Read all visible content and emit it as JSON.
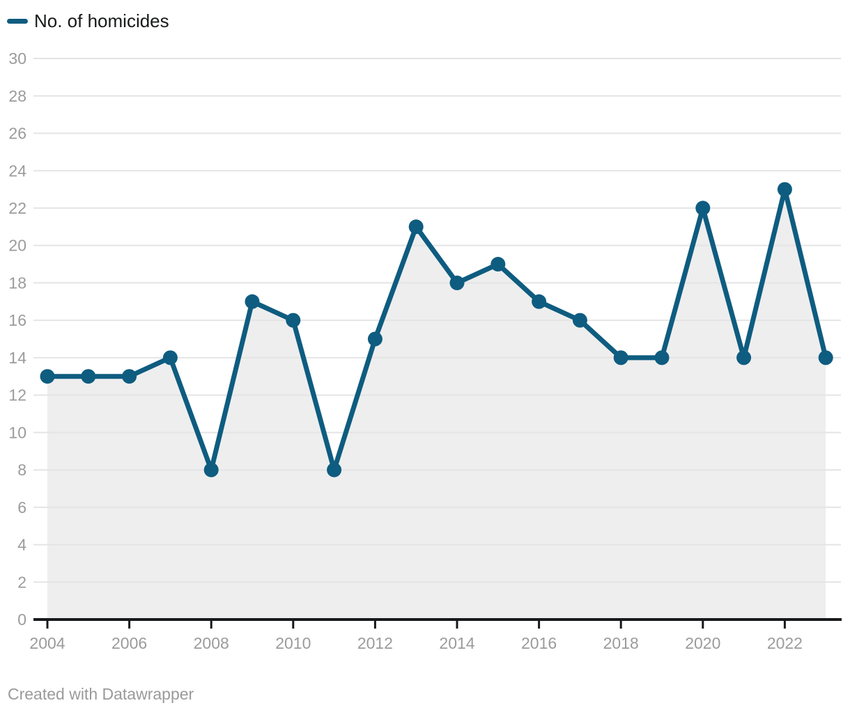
{
  "legend": {
    "label": "No. of homicides"
  },
  "footer": {
    "credit": "Created with Datawrapper"
  },
  "colors": {
    "line": "#0e5c80",
    "marker": "#0e5c80",
    "area_fill": "#eeeeee",
    "grid": "#e4e4e4",
    "axis_text": "#9b9b9b",
    "axis_line": "#18191a",
    "legend_text": "#18191a"
  },
  "chart_data": {
    "type": "line",
    "title": "",
    "xlabel": "",
    "ylabel": "",
    "x": [
      2004,
      2005,
      2006,
      2007,
      2008,
      2009,
      2010,
      2011,
      2012,
      2013,
      2014,
      2015,
      2016,
      2017,
      2018,
      2019,
      2020,
      2021,
      2022,
      2023
    ],
    "series": [
      {
        "name": "No. of homicides",
        "values": [
          13,
          13,
          13,
          14,
          8,
          17,
          16,
          8,
          15,
          21,
          18,
          19,
          17,
          16,
          14,
          14,
          22,
          14,
          23,
          14
        ]
      }
    ],
    "ylim": [
      0,
      30
    ],
    "ytick_step": 2,
    "yticks": [
      0,
      2,
      4,
      6,
      8,
      10,
      12,
      14,
      16,
      18,
      20,
      22,
      24,
      26,
      28,
      30
    ],
    "xticks": [
      2004,
      2006,
      2008,
      2010,
      2012,
      2014,
      2016,
      2018,
      2020,
      2022
    ],
    "grid": true,
    "area": true,
    "marker": "circle",
    "legend_position": "top-left"
  }
}
